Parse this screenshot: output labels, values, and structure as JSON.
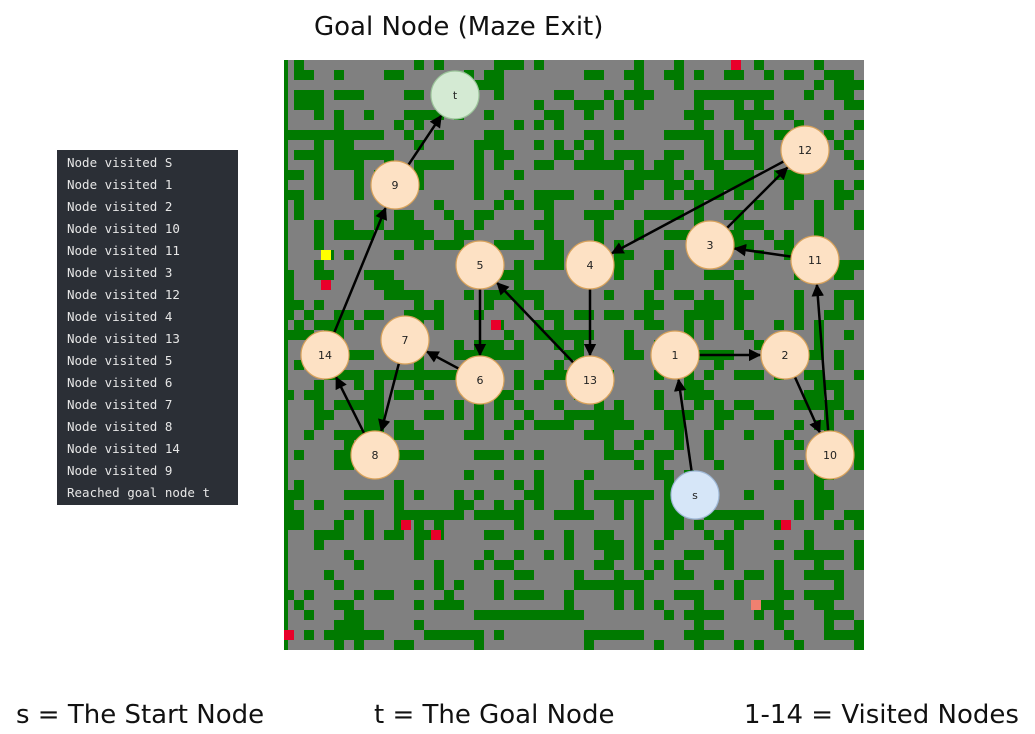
{
  "title": "Goal Node (Maze Exit)",
  "console": {
    "lines": [
      "Node visited S",
      "Node visited 1",
      "Node visited 2",
      "Node visited 10",
      "Node visited 11",
      "Node visited 3",
      "Node visited 12",
      "Node visited 4",
      "Node visited 13",
      "Node visited 5",
      "Node visited 6",
      "Node visited 7",
      "Node visited 8",
      "Node visited 14",
      "Node visited 9",
      "Reached goal node t"
    ]
  },
  "legend": {
    "start": "s = The Start Node",
    "goal": "t = The Goal Node",
    "visited": "1-14 = Visited Nodes"
  },
  "colors": {
    "maze_floor": "#808080",
    "maze_wall": "#007a00",
    "marker_red": "#e8002a",
    "marker_yellow": "#ffff00",
    "marker_salmon": "#f08070",
    "node_visited_fill": "#fde1c4",
    "node_visited_stroke": "#d9a25a",
    "node_start_fill": "#d6e6f8",
    "node_goal_fill": "#d4ead3",
    "arrow": "#000000",
    "console_bg": "#2b2f36"
  },
  "nodes": [
    {
      "id": "s",
      "label": "s",
      "kind": "start"
    },
    {
      "id": "t",
      "label": "t",
      "kind": "goal"
    },
    {
      "id": "1",
      "label": "1",
      "kind": "visited"
    },
    {
      "id": "2",
      "label": "2",
      "kind": "visited"
    },
    {
      "id": "3",
      "label": "3",
      "kind": "visited"
    },
    {
      "id": "4",
      "label": "4",
      "kind": "visited"
    },
    {
      "id": "5",
      "label": "5",
      "kind": "visited"
    },
    {
      "id": "6",
      "label": "6",
      "kind": "visited"
    },
    {
      "id": "7",
      "label": "7",
      "kind": "visited"
    },
    {
      "id": "8",
      "label": "8",
      "kind": "visited"
    },
    {
      "id": "9",
      "label": "9",
      "kind": "visited"
    },
    {
      "id": "10",
      "label": "10",
      "kind": "visited"
    },
    {
      "id": "11",
      "label": "11",
      "kind": "visited"
    },
    {
      "id": "12",
      "label": "12",
      "kind": "visited"
    },
    {
      "id": "13",
      "label": "13",
      "kind": "visited"
    },
    {
      "id": "14",
      "label": "14",
      "kind": "visited"
    }
  ],
  "edges": [
    [
      "s",
      "1"
    ],
    [
      "1",
      "2"
    ],
    [
      "2",
      "10"
    ],
    [
      "10",
      "11"
    ],
    [
      "11",
      "3"
    ],
    [
      "3",
      "12"
    ],
    [
      "12",
      "4"
    ],
    [
      "4",
      "13"
    ],
    [
      "13",
      "5"
    ],
    [
      "5",
      "6"
    ],
    [
      "6",
      "7"
    ],
    [
      "7",
      "8"
    ],
    [
      "8",
      "14"
    ],
    [
      "14",
      "9"
    ],
    [
      "9",
      "t"
    ]
  ]
}
